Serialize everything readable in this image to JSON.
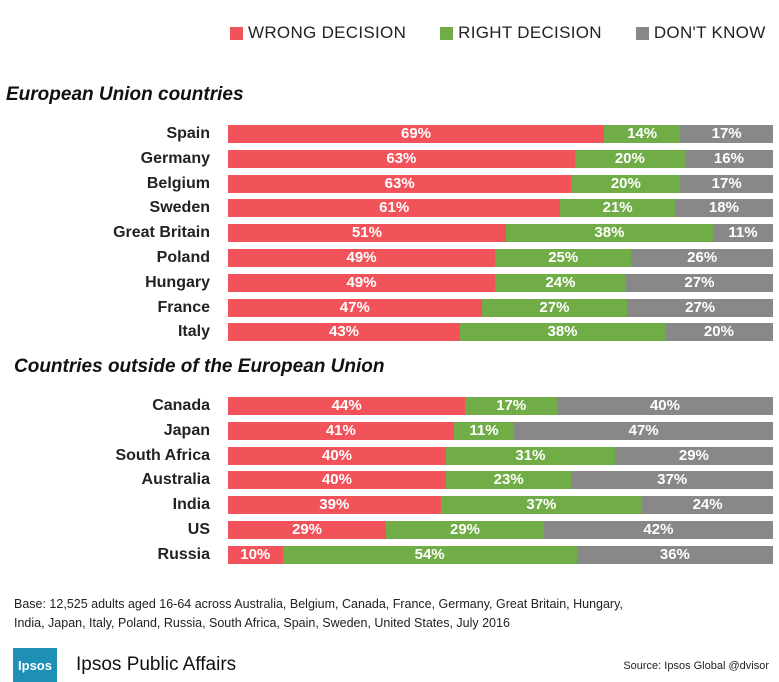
{
  "colors": {
    "wrong": "#f2535b",
    "right": "#70ad47",
    "dont_know": "#888888"
  },
  "legend": [
    {
      "label": "WRONG DECISION",
      "color": "#f2535b"
    },
    {
      "label": "RIGHT DECISION",
      "color": "#70ad47"
    },
    {
      "label": "DON'T KNOW",
      "color": "#888888"
    }
  ],
  "sections": {
    "eu_title": "European Union countries",
    "non_eu_title": "Countries outside of the European Union"
  },
  "chart_data": {
    "type": "bar",
    "stacked": true,
    "orientation": "horizontal",
    "unit": "%",
    "series_names": [
      "WRONG DECISION",
      "RIGHT DECISION",
      "DON'T KNOW"
    ],
    "groups": [
      {
        "title": "European Union countries",
        "rows": [
          {
            "country": "Spain",
            "wrong": 69,
            "right": 14,
            "dont_know": 17
          },
          {
            "country": "Germany",
            "wrong": 63,
            "right": 20,
            "dont_know": 16
          },
          {
            "country": "Belgium",
            "wrong": 63,
            "right": 20,
            "dont_know": 17
          },
          {
            "country": "Sweden",
            "wrong": 61,
            "right": 21,
            "dont_know": 18
          },
          {
            "country": "Great Britain",
            "wrong": 51,
            "right": 38,
            "dont_know": 11
          },
          {
            "country": "Poland",
            "wrong": 49,
            "right": 25,
            "dont_know": 26
          },
          {
            "country": "Hungary",
            "wrong": 49,
            "right": 24,
            "dont_know": 27
          },
          {
            "country": "France",
            "wrong": 47,
            "right": 27,
            "dont_know": 27
          },
          {
            "country": "Italy",
            "wrong": 43,
            "right": 38,
            "dont_know": 20
          }
        ]
      },
      {
        "title": "Countries outside of the European Union",
        "rows": [
          {
            "country": "Canada",
            "wrong": 44,
            "right": 17,
            "dont_know": 40
          },
          {
            "country": "Japan",
            "wrong": 41,
            "right": 11,
            "dont_know": 47
          },
          {
            "country": "South Africa",
            "wrong": 40,
            "right": 31,
            "dont_know": 29
          },
          {
            "country": "Australia",
            "wrong": 40,
            "right": 23,
            "dont_know": 37
          },
          {
            "country": "India",
            "wrong": 39,
            "right": 37,
            "dont_know": 24
          },
          {
            "country": "US",
            "wrong": 29,
            "right": 29,
            "dont_know": 42
          },
          {
            "country": "Russia",
            "wrong": 10,
            "right": 54,
            "dont_know": 36
          }
        ]
      }
    ]
  },
  "footnote": {
    "line1": "Base: 12,525 adults aged 16-64 across  Australia, Belgium, Canada, France, Germany, Great Britain, Hungary,",
    "line2": "India, Japan, Italy, Poland, Russia, South Africa, Spain, Sweden, United States, July 2016"
  },
  "branding": {
    "logo_text": "Ipsos",
    "brand_name": "Ipsos Public Affairs",
    "source": "Source: Ipsos Global @dvisor"
  }
}
